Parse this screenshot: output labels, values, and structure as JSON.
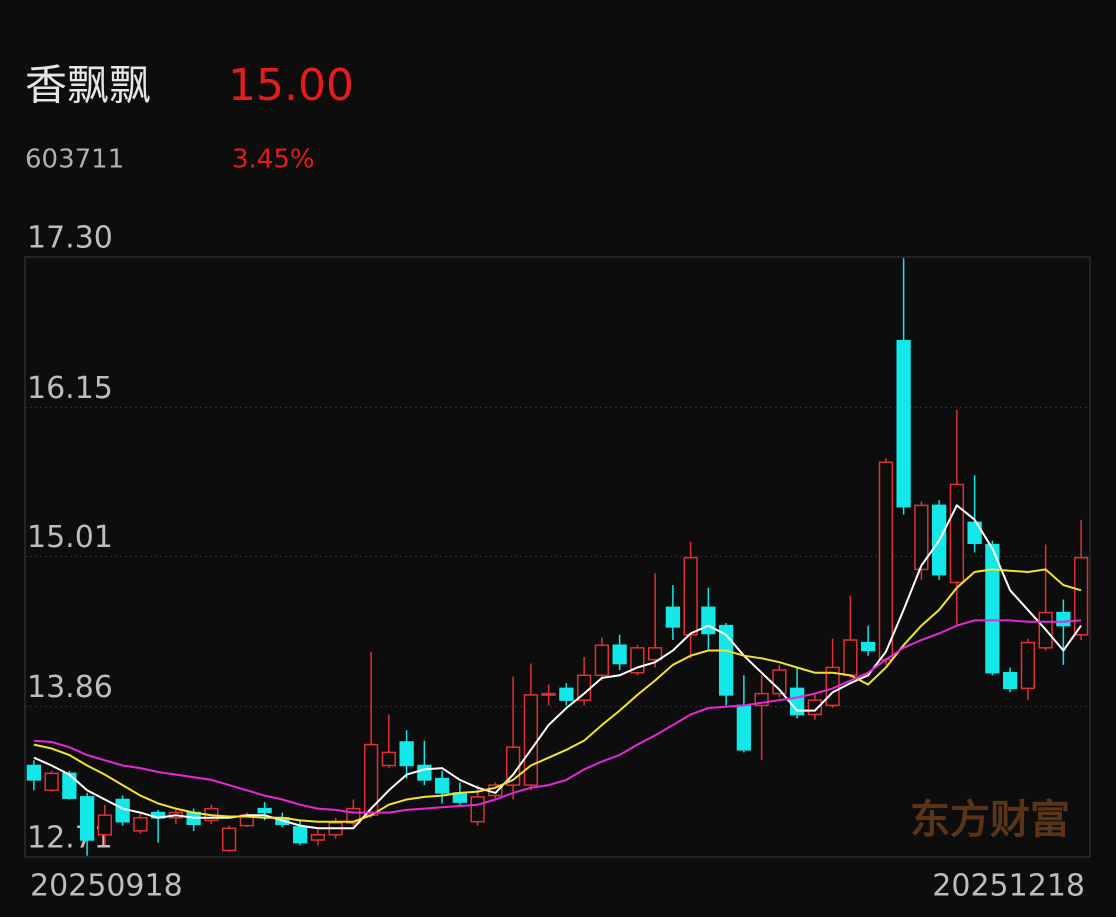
{
  "header": {
    "name": "香飘飘",
    "price": "15.00",
    "code": "603711",
    "change": "3.45%"
  },
  "chart_data": {
    "type": "candlestick",
    "categories": [
      "20250918",
      null,
      null,
      null,
      null,
      null,
      null,
      null,
      null,
      null,
      null,
      null,
      null,
      null,
      null,
      null,
      null,
      null,
      null,
      null,
      null,
      null,
      null,
      null,
      null,
      null,
      null,
      null,
      null,
      null,
      null,
      null,
      null,
      null,
      null,
      null,
      null,
      null,
      null,
      null,
      null,
      null,
      null,
      null,
      null,
      null,
      null,
      null,
      null,
      null,
      null,
      null,
      null,
      null,
      null,
      null,
      null,
      null,
      null,
      "20251218"
    ],
    "open": [
      13.41,
      13.22,
      13.35,
      13.17,
      12.88,
      13.15,
      12.91,
      13.05,
      13.01,
      13.05,
      12.99,
      12.76,
      12.95,
      13.08,
      13.01,
      12.94,
      12.84,
      12.88,
      12.97,
      13.03,
      13.41,
      13.59,
      13.41,
      13.31,
      13.2,
      12.98,
      13.18,
      13.26,
      13.26,
      13.95,
      14.0,
      13.91,
      14.1,
      14.33,
      14.12,
      14.22,
      14.62,
      14.41,
      14.62,
      14.48,
      13.87,
      13.87,
      13.96,
      14.0,
      13.8,
      13.87,
      14.1,
      14.35,
      14.22,
      16.66,
      14.91,
      15.4,
      14.81,
      15.27,
      15.1,
      14.12,
      14.0,
      14.31,
      14.58,
      14.41
    ],
    "high": [
      13.45,
      13.37,
      13.37,
      13.2,
      13.11,
      13.18,
      13.05,
      13.07,
      13.07,
      13.08,
      13.11,
      12.95,
      13.05,
      13.13,
      13.05,
      12.99,
      12.92,
      13.01,
      13.15,
      14.28,
      13.8,
      13.68,
      13.6,
      13.37,
      13.28,
      13.26,
      13.28,
      14.09,
      14.19,
      14.03,
      14.04,
      14.24,
      14.39,
      14.41,
      14.33,
      14.88,
      14.79,
      15.12,
      14.77,
      14.5,
      14.1,
      14.1,
      14.18,
      14.16,
      13.95,
      14.38,
      14.71,
      14.48,
      15.76,
      17.29,
      15.43,
      15.44,
      16.13,
      15.63,
      15.13,
      14.16,
      14.38,
      15.1,
      14.68,
      15.29
    ],
    "low": [
      13.22,
      13.21,
      13.15,
      12.72,
      12.8,
      12.95,
      12.89,
      12.82,
      12.96,
      12.91,
      12.96,
      12.75,
      12.94,
      12.99,
      12.94,
      12.8,
      12.8,
      12.85,
      12.95,
      13.01,
      13.39,
      13.31,
      13.26,
      13.12,
      13.11,
      12.95,
      13.16,
      13.15,
      13.22,
      13.87,
      13.87,
      13.87,
      14.06,
      14.14,
      14.1,
      14.16,
      14.37,
      14.23,
      14.29,
      13.87,
      13.51,
      13.45,
      13.93,
      13.77,
      13.76,
      13.85,
      14.08,
      14.25,
      14.18,
      15.33,
      14.83,
      14.83,
      14.48,
      15.04,
      14.1,
      13.97,
      13.91,
      14.29,
      14.18,
      14.37
    ],
    "close": [
      13.3,
      13.35,
      13.16,
      12.84,
      13.03,
      12.98,
      13.01,
      13.01,
      13.05,
      12.96,
      13.08,
      12.93,
      13.03,
      13.05,
      12.96,
      12.82,
      12.88,
      12.97,
      13.08,
      13.57,
      13.51,
      13.41,
      13.3,
      13.2,
      13.13,
      13.17,
      13.26,
      13.55,
      13.95,
      13.96,
      13.91,
      14.1,
      14.33,
      14.19,
      14.31,
      14.31,
      14.47,
      15.0,
      14.42,
      13.95,
      13.53,
      13.96,
      14.14,
      13.8,
      13.91,
      14.16,
      14.37,
      14.29,
      15.73,
      15.39,
      15.4,
      14.87,
      15.56,
      15.11,
      14.12,
      14.0,
      14.35,
      14.58,
      14.48,
      15.0
    ],
    "up_color": "#e03232",
    "down_color": "#12e8e8",
    "lines": [
      {
        "color": "#ffffff",
        "values": [
          13.47,
          13.41,
          13.34,
          13.22,
          13.15,
          13.08,
          13.05,
          13.01,
          13.03,
          13.01,
          13.01,
          13.01,
          13.03,
          13.03,
          12.99,
          12.95,
          12.93,
          12.93,
          12.93,
          13.08,
          13.22,
          13.34,
          13.38,
          13.39,
          13.3,
          13.24,
          13.2,
          13.34,
          13.53,
          13.72,
          13.85,
          13.96,
          14.08,
          14.1,
          14.16,
          14.2,
          14.29,
          14.42,
          14.48,
          14.41,
          14.25,
          14.12,
          13.99,
          13.83,
          13.83,
          13.97,
          14.04,
          14.1,
          14.28,
          14.6,
          14.94,
          15.13,
          15.4,
          15.29,
          15.07,
          14.75,
          14.6,
          14.45,
          14.29,
          14.48
        ]
      },
      {
        "color": "#f2e233",
        "values": [
          13.57,
          13.54,
          13.49,
          13.41,
          13.34,
          13.26,
          13.18,
          13.12,
          13.08,
          13.05,
          13.03,
          13.02,
          13.02,
          13.01,
          13.01,
          12.99,
          12.98,
          12.98,
          12.98,
          13.03,
          13.11,
          13.15,
          13.17,
          13.18,
          13.2,
          13.21,
          13.24,
          13.3,
          13.41,
          13.47,
          13.53,
          13.6,
          13.72,
          13.83,
          13.95,
          14.06,
          14.18,
          14.25,
          14.29,
          14.29,
          14.25,
          14.23,
          14.2,
          14.16,
          14.12,
          14.12,
          14.1,
          14.03,
          14.16,
          14.33,
          14.48,
          14.6,
          14.77,
          14.89,
          14.91,
          14.9,
          14.89,
          14.91,
          14.79,
          14.75
        ]
      },
      {
        "color": "#e629d6",
        "values": [
          13.6,
          13.59,
          13.55,
          13.49,
          13.45,
          13.41,
          13.39,
          13.36,
          13.34,
          13.32,
          13.3,
          13.26,
          13.22,
          13.18,
          13.15,
          13.11,
          13.08,
          13.07,
          13.05,
          13.05,
          13.05,
          13.07,
          13.08,
          13.09,
          13.1,
          13.11,
          13.15,
          13.2,
          13.24,
          13.26,
          13.3,
          13.38,
          13.44,
          13.49,
          13.57,
          13.64,
          13.72,
          13.8,
          13.85,
          13.86,
          13.87,
          13.89,
          13.91,
          13.93,
          13.96,
          14.0,
          14.06,
          14.12,
          14.22,
          14.31,
          14.37,
          14.42,
          14.48,
          14.52,
          14.52,
          14.52,
          14.51,
          14.51,
          14.51,
          14.52
        ]
      }
    ],
    "ylim": [
      12.71,
      17.3
    ],
    "yticks": [
      {
        "value": 17.3,
        "label": "17.30"
      },
      16.15,
      15.01,
      13.86,
      12.71
    ],
    "grid": true,
    "watermark": "东方财富"
  }
}
